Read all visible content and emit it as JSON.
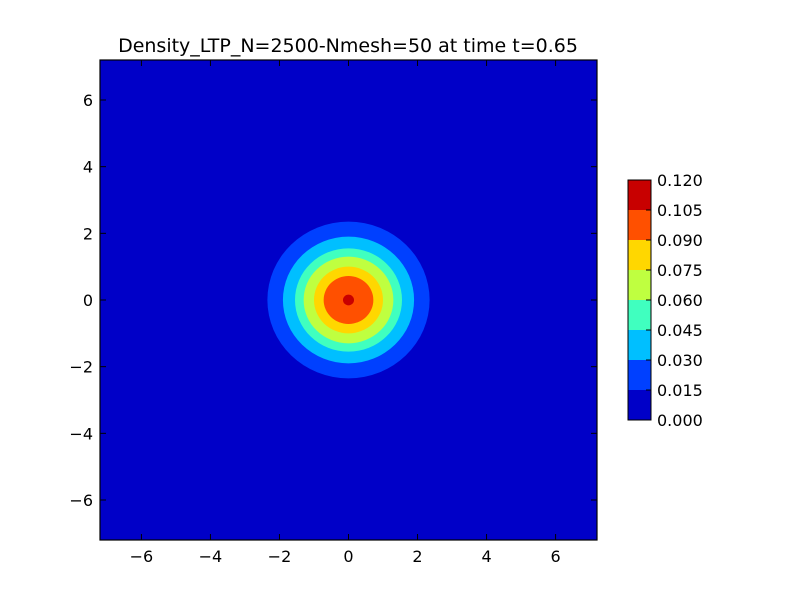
{
  "chart_data": {
    "type": "heatmap",
    "title": "Density_LTP_N=2500-Nmesh=50 at time t=0.65",
    "xlabel": "",
    "ylabel": "",
    "xlim": [
      -7.2,
      7.2
    ],
    "ylim": [
      -7.2,
      7.2
    ],
    "x_ticks": [
      -6,
      -4,
      -2,
      0,
      2,
      4,
      6
    ],
    "y_ticks": [
      -6,
      -4,
      -2,
      0,
      2,
      4,
      6
    ],
    "x_tick_labels": [
      "−6",
      "−4",
      "−2",
      "0",
      "2",
      "4",
      "6"
    ],
    "y_tick_labels": [
      "−6",
      "−4",
      "−2",
      "0",
      "2",
      "4",
      "6"
    ],
    "grid": false,
    "colorbar": {
      "levels": [
        0.0,
        0.015,
        0.03,
        0.045,
        0.06,
        0.075,
        0.09,
        0.105,
        0.12
      ],
      "labels": [
        "0.000",
        "0.015",
        "0.030",
        "0.045",
        "0.060",
        "0.075",
        "0.090",
        "0.105",
        "0.120"
      ],
      "colors": [
        "#0000c8",
        "#0040ff",
        "#00bfff",
        "#40ffbf",
        "#bfff40",
        "#ffd700",
        "#ff5000",
        "#c80000"
      ]
    },
    "contour_bands": [
      {
        "level_min": 0.0,
        "level_max": 0.015,
        "radius": 7.2,
        "color": "#0000c8"
      },
      {
        "level_min": 0.015,
        "level_max": 0.03,
        "radius": 2.35,
        "color": "#0040ff"
      },
      {
        "level_min": 0.03,
        "level_max": 0.045,
        "radius": 1.9,
        "color": "#00bfff"
      },
      {
        "level_min": 0.045,
        "level_max": 0.06,
        "radius": 1.55,
        "color": "#40ffbf"
      },
      {
        "level_min": 0.06,
        "level_max": 0.075,
        "radius": 1.3,
        "color": "#bfff40"
      },
      {
        "level_min": 0.075,
        "level_max": 0.09,
        "radius": 1.0,
        "color": "#ffd700"
      },
      {
        "level_min": 0.09,
        "level_max": 0.105,
        "radius": 0.72,
        "color": "#ff5000"
      },
      {
        "level_min": 0.105,
        "level_max": 0.12,
        "radius": 0.16,
        "color": "#c80000"
      }
    ]
  }
}
